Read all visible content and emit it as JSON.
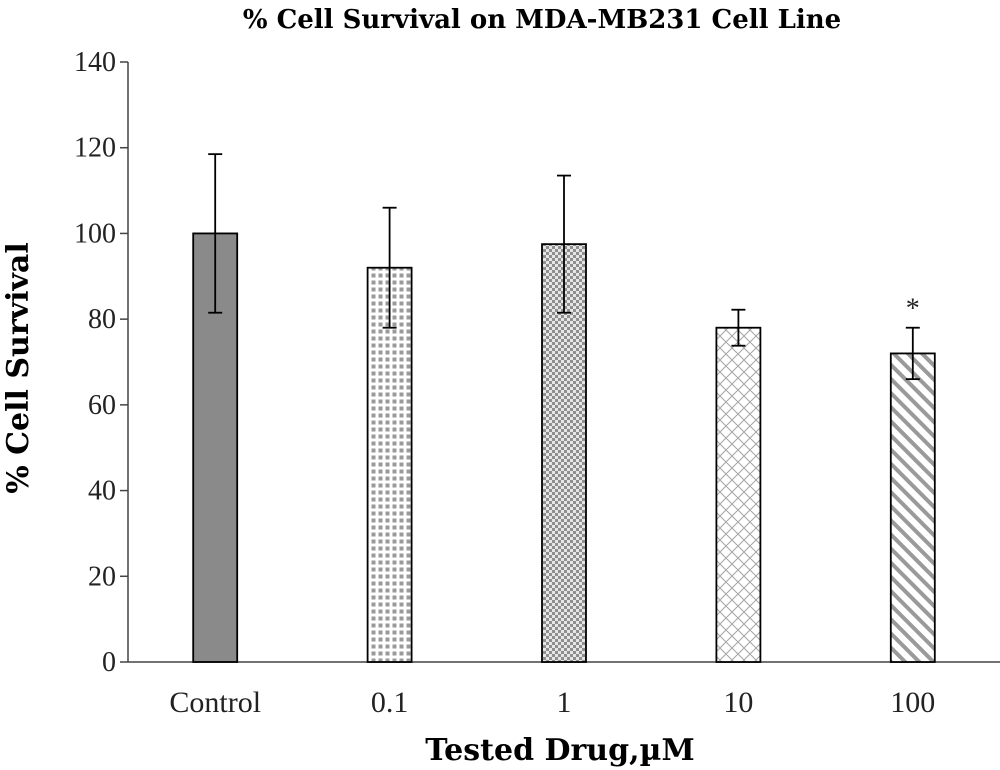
{
  "chart_data": {
    "type": "bar",
    "title": "% Cell Survival on MDA-MB231 Cell Line",
    "xlabel": "Tested Drug,µM",
    "ylabel": "% Cell Survival",
    "categories": [
      "Control",
      "0.1",
      "1",
      "10",
      "100"
    ],
    "values": [
      100,
      92,
      97.5,
      78,
      72
    ],
    "error": [
      18.5,
      14,
      16,
      4.2,
      6
    ],
    "ylim": [
      0,
      140
    ],
    "yticks": [
      0,
      20,
      40,
      60,
      80,
      100,
      120,
      140
    ],
    "significance_marker": "*",
    "significant_categories": [
      "100"
    ],
    "fill_patterns": [
      "solid",
      "dots",
      "checker",
      "crosshatch",
      "diagonal"
    ],
    "colors": {
      "control_fill": "#8a8a8a",
      "pattern": "#8f8f8f",
      "stroke": "#000000"
    },
    "grid": false,
    "legend": "none"
  }
}
